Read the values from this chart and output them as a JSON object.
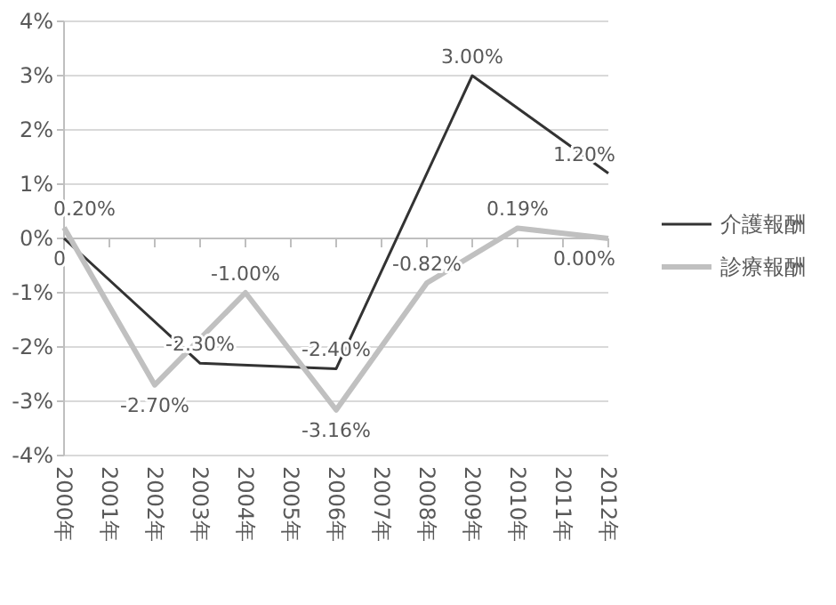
{
  "chart_data": {
    "type": "line",
    "categories": [
      "2000年",
      "2001年",
      "2002年",
      "2003年",
      "2004年",
      "2005年",
      "2006年",
      "2007年",
      "2008年",
      "2009年",
      "2010年",
      "2011年",
      "2012年"
    ],
    "ylim": [
      -4,
      4
    ],
    "yticks": [
      {
        "value": -4,
        "label": "-4%"
      },
      {
        "value": -3,
        "label": "-3%"
      },
      {
        "value": -2,
        "label": "-2%"
      },
      {
        "value": -1,
        "label": "-1%"
      },
      {
        "value": 0,
        "label": "0%"
      },
      {
        "value": 1,
        "label": "1%"
      },
      {
        "value": 2,
        "label": "2%"
      },
      {
        "value": 3,
        "label": "3%"
      },
      {
        "value": 4,
        "label": "4%"
      }
    ],
    "grid": "y",
    "legend": "right",
    "marker": "none",
    "series": [
      {
        "name": "介護報酬",
        "color": "#333333",
        "values": [
          0,
          null,
          null,
          -2.3,
          null,
          null,
          -2.4,
          null,
          null,
          3.0,
          null,
          null,
          1.2
        ],
        "value_labels": [
          "0",
          null,
          null,
          "-2.30%",
          null,
          null,
          "-2.40%",
          null,
          null,
          "3.00%",
          null,
          null,
          "1.20%"
        ]
      },
      {
        "name": "診療報酬",
        "color": "#c0c0c0",
        "values": [
          0.2,
          null,
          -2.7,
          null,
          -1.0,
          null,
          -3.16,
          null,
          -0.82,
          null,
          0.19,
          null,
          0.0
        ],
        "value_labels": [
          "0.20%",
          null,
          "-2.70%",
          null,
          "-1.00%",
          null,
          "-3.16%",
          null,
          "-0.82%",
          null,
          "0.19%",
          null,
          "0.00%"
        ]
      }
    ]
  }
}
